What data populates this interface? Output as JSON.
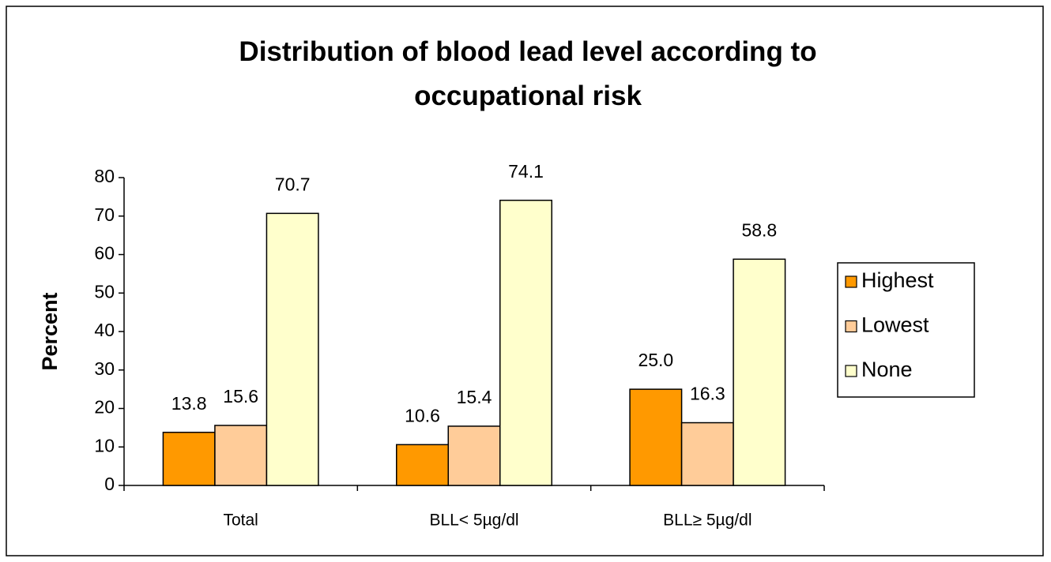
{
  "chart_data": {
    "type": "bar",
    "title": "Distribution of blood lead level according to occupational risk",
    "ylabel": "Percent",
    "categories": [
      "Total",
      "BLL< 5µg/dl",
      "BLL≥ 5µg/dl"
    ],
    "series": [
      {
        "name": "Highest",
        "color": "#ff9900",
        "values": [
          13.8,
          10.6,
          25
        ],
        "value_labels": [
          "13.8",
          "10.6",
          "25.0"
        ]
      },
      {
        "name": "Lowest",
        "color": "#ffcc99",
        "values": [
          15.6,
          15.4,
          16.3
        ]
      },
      {
        "name": "None",
        "color": "#ffffcc",
        "values": [
          70.7,
          74.1,
          58.8
        ]
      }
    ],
    "ylim": [
      0,
      80
    ],
    "yticks": [
      0,
      10,
      20,
      30,
      40,
      50,
      60,
      70,
      80
    ],
    "grid": false,
    "legend": "right"
  }
}
